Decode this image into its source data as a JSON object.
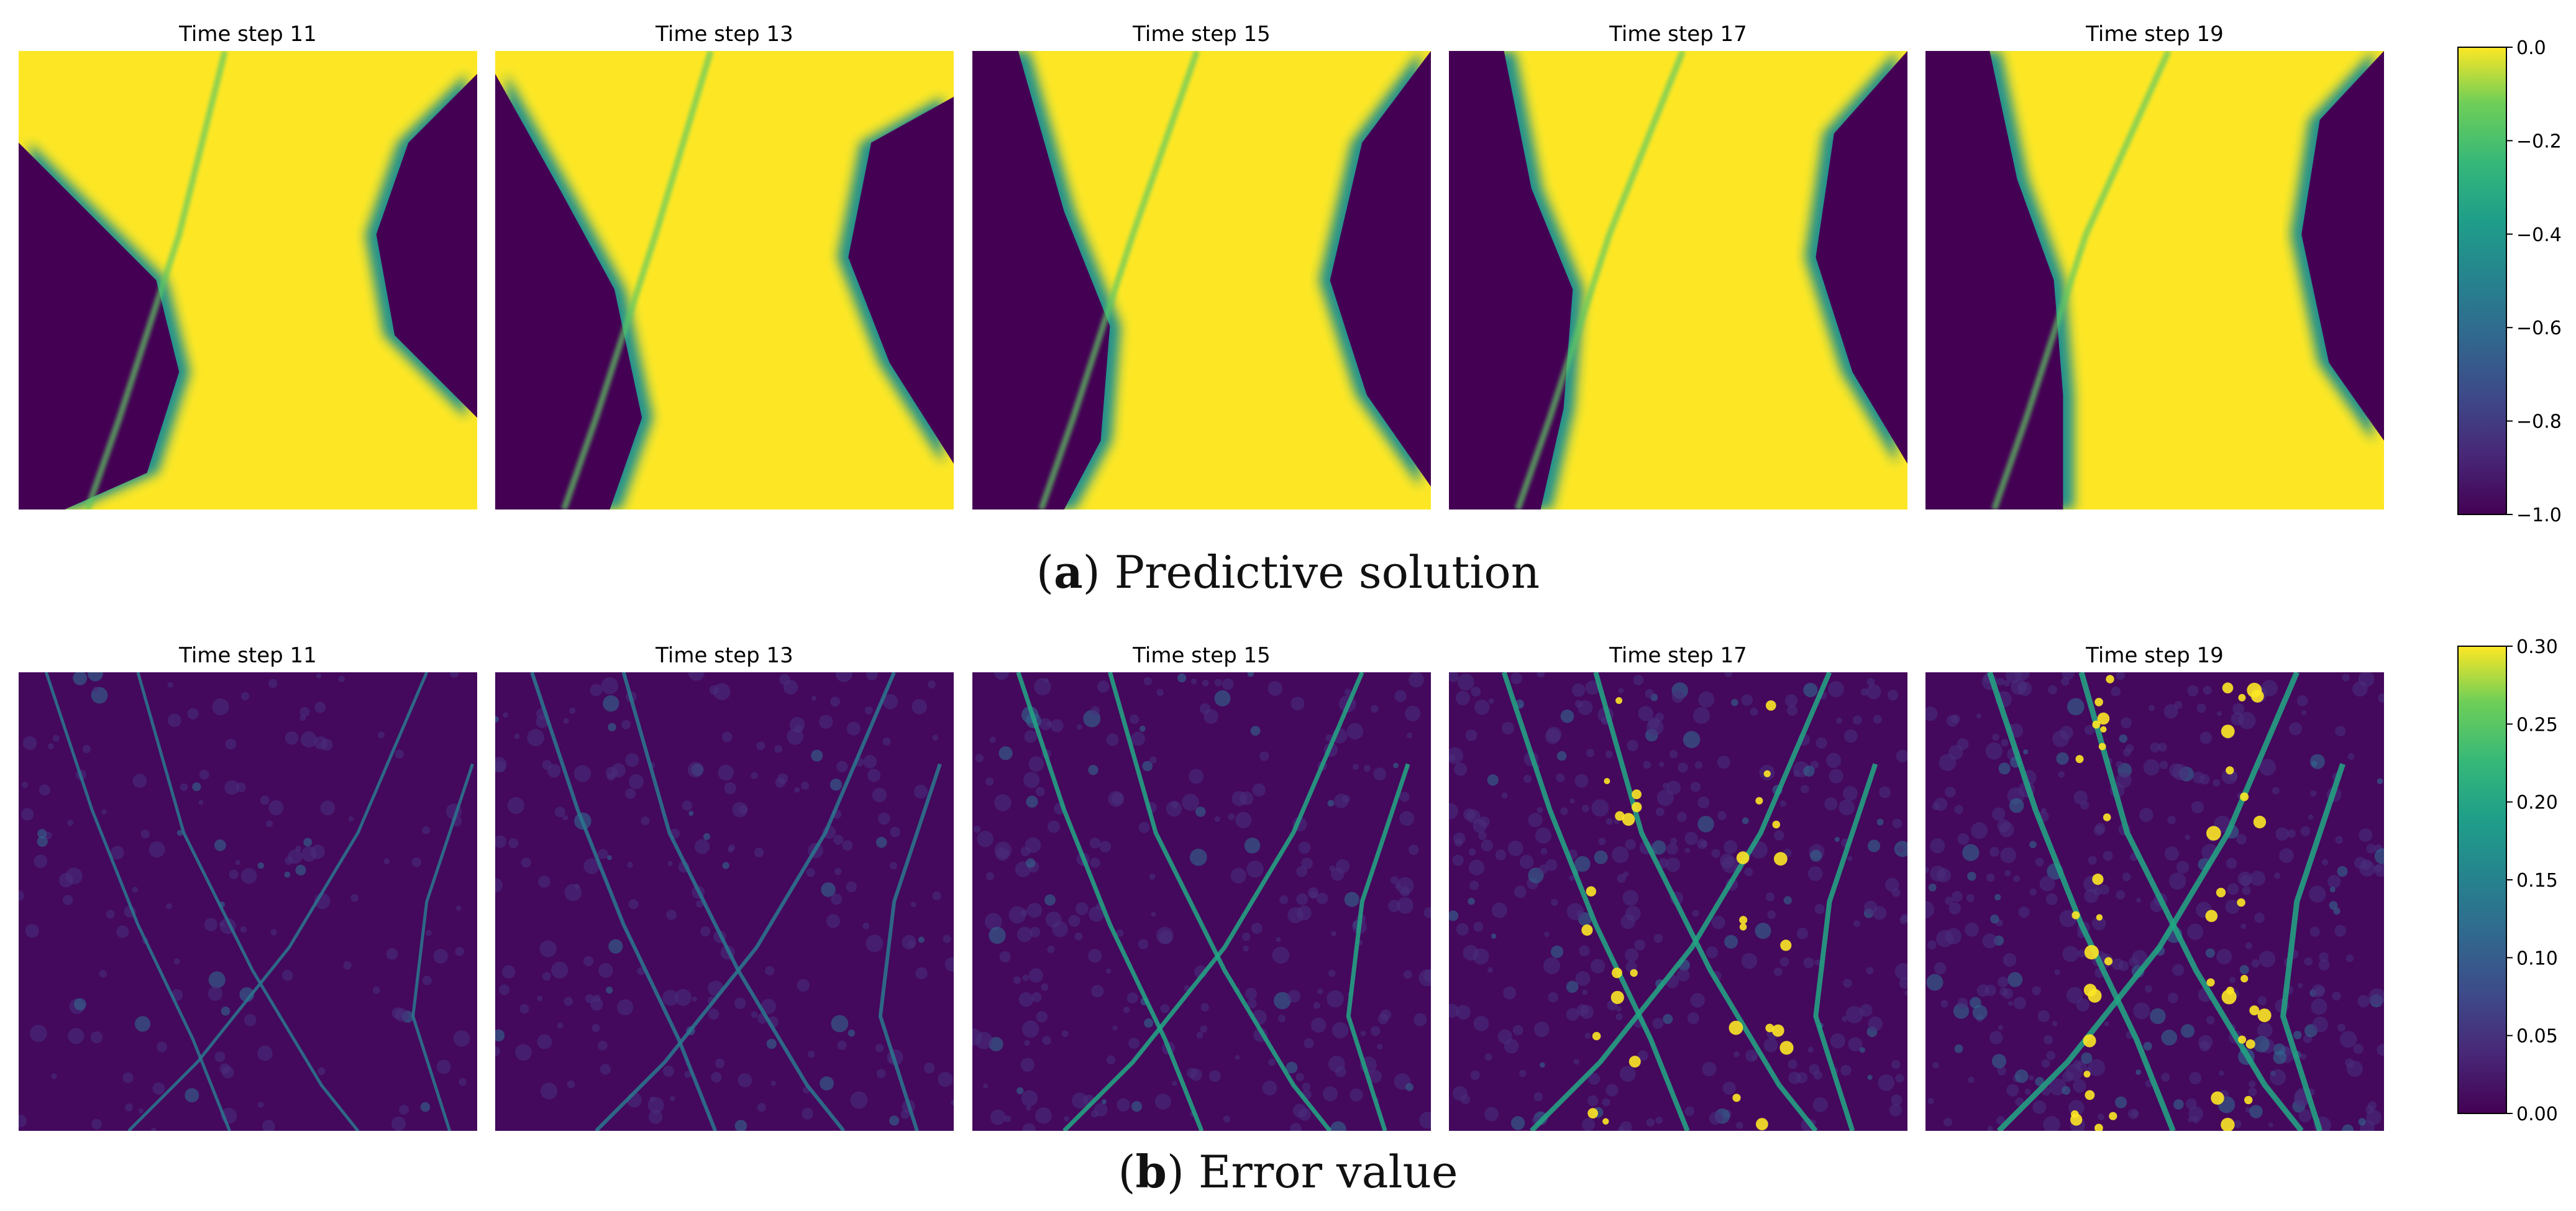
{
  "chart_data": [
    {
      "type": "heatmap",
      "panel_label": "a",
      "caption": "Predictive solution",
      "titles": [
        "Time step 11",
        "Time step 13",
        "Time step 15",
        "Time step 17",
        "Time step 19"
      ],
      "colormap": "viridis",
      "colorbar": {
        "min": -1.0,
        "max": 0.0,
        "ticks": [
          "0.0",
          "−0.2",
          "−0.4",
          "−0.6",
          "−0.8",
          "−1.0"
        ],
        "tick_values": [
          0.0,
          -0.2,
          -0.4,
          -0.6,
          -0.8,
          -1.0
        ]
      },
      "axes_visible": false
    },
    {
      "type": "heatmap",
      "panel_label": "b",
      "caption": "Error value",
      "titles": [
        "Time step 11",
        "Time step 13",
        "Time step 15",
        "Time step 17",
        "Time step 19"
      ],
      "colormap": "viridis",
      "colorbar": {
        "min": 0.0,
        "max": 0.3,
        "ticks": [
          "0.30",
          "0.25",
          "0.20",
          "0.15",
          "0.10",
          "0.05",
          "0.00"
        ],
        "tick_values": [
          0.3,
          0.25,
          0.2,
          0.15,
          0.1,
          0.05,
          0.0
        ]
      },
      "axes_visible": false
    }
  ],
  "colors": {
    "viridis_low": "#440154",
    "viridis_mid": "#21918c",
    "viridis_high": "#fde725"
  }
}
